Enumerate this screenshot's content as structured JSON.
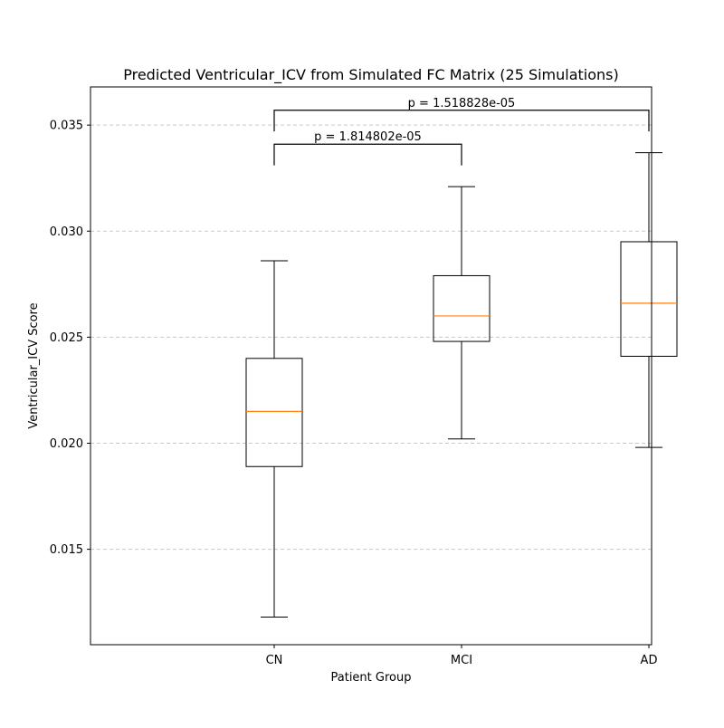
{
  "chart_data": {
    "type": "box",
    "title": "Predicted Ventricular_ICV from Simulated FC Matrix (25 Simulations)",
    "xlabel": "Patient Group",
    "ylabel": "Ventricular_ICV Score",
    "ylim": [
      0.0105,
      0.0368
    ],
    "yticks": [
      0.015,
      0.02,
      0.025,
      0.03,
      0.035
    ],
    "ytick_labels": [
      "0.015",
      "0.020",
      "0.025",
      "0.030",
      "0.035"
    ],
    "grid": "y-dashed",
    "categories": [
      "CN",
      "MCI",
      "AD"
    ],
    "boxes": [
      {
        "name": "CN",
        "whisker_low": 0.0118,
        "q1": 0.0189,
        "median": 0.0215,
        "q3": 0.024,
        "whisker_high": 0.0286
      },
      {
        "name": "MCI",
        "whisker_low": 0.0202,
        "q1": 0.0248,
        "median": 0.026,
        "q3": 0.0279,
        "whisker_high": 0.0321
      },
      {
        "name": "AD",
        "whisker_low": 0.0198,
        "q1": 0.0241,
        "median": 0.0266,
        "q3": 0.0295,
        "whisker_high": 0.0337
      }
    ],
    "significance": [
      {
        "from": "CN",
        "to": "MCI",
        "label": "p = 1.814802e-05",
        "y": 0.0341,
        "drop": 0.001
      },
      {
        "from": "CN",
        "to": "AD",
        "label": "p = 1.518828e-05",
        "y": 0.0357,
        "drop": 0.001
      }
    ],
    "colors": {
      "box": "#000000",
      "median": "#ff7f0e",
      "grid": "#c8c8c8"
    }
  }
}
